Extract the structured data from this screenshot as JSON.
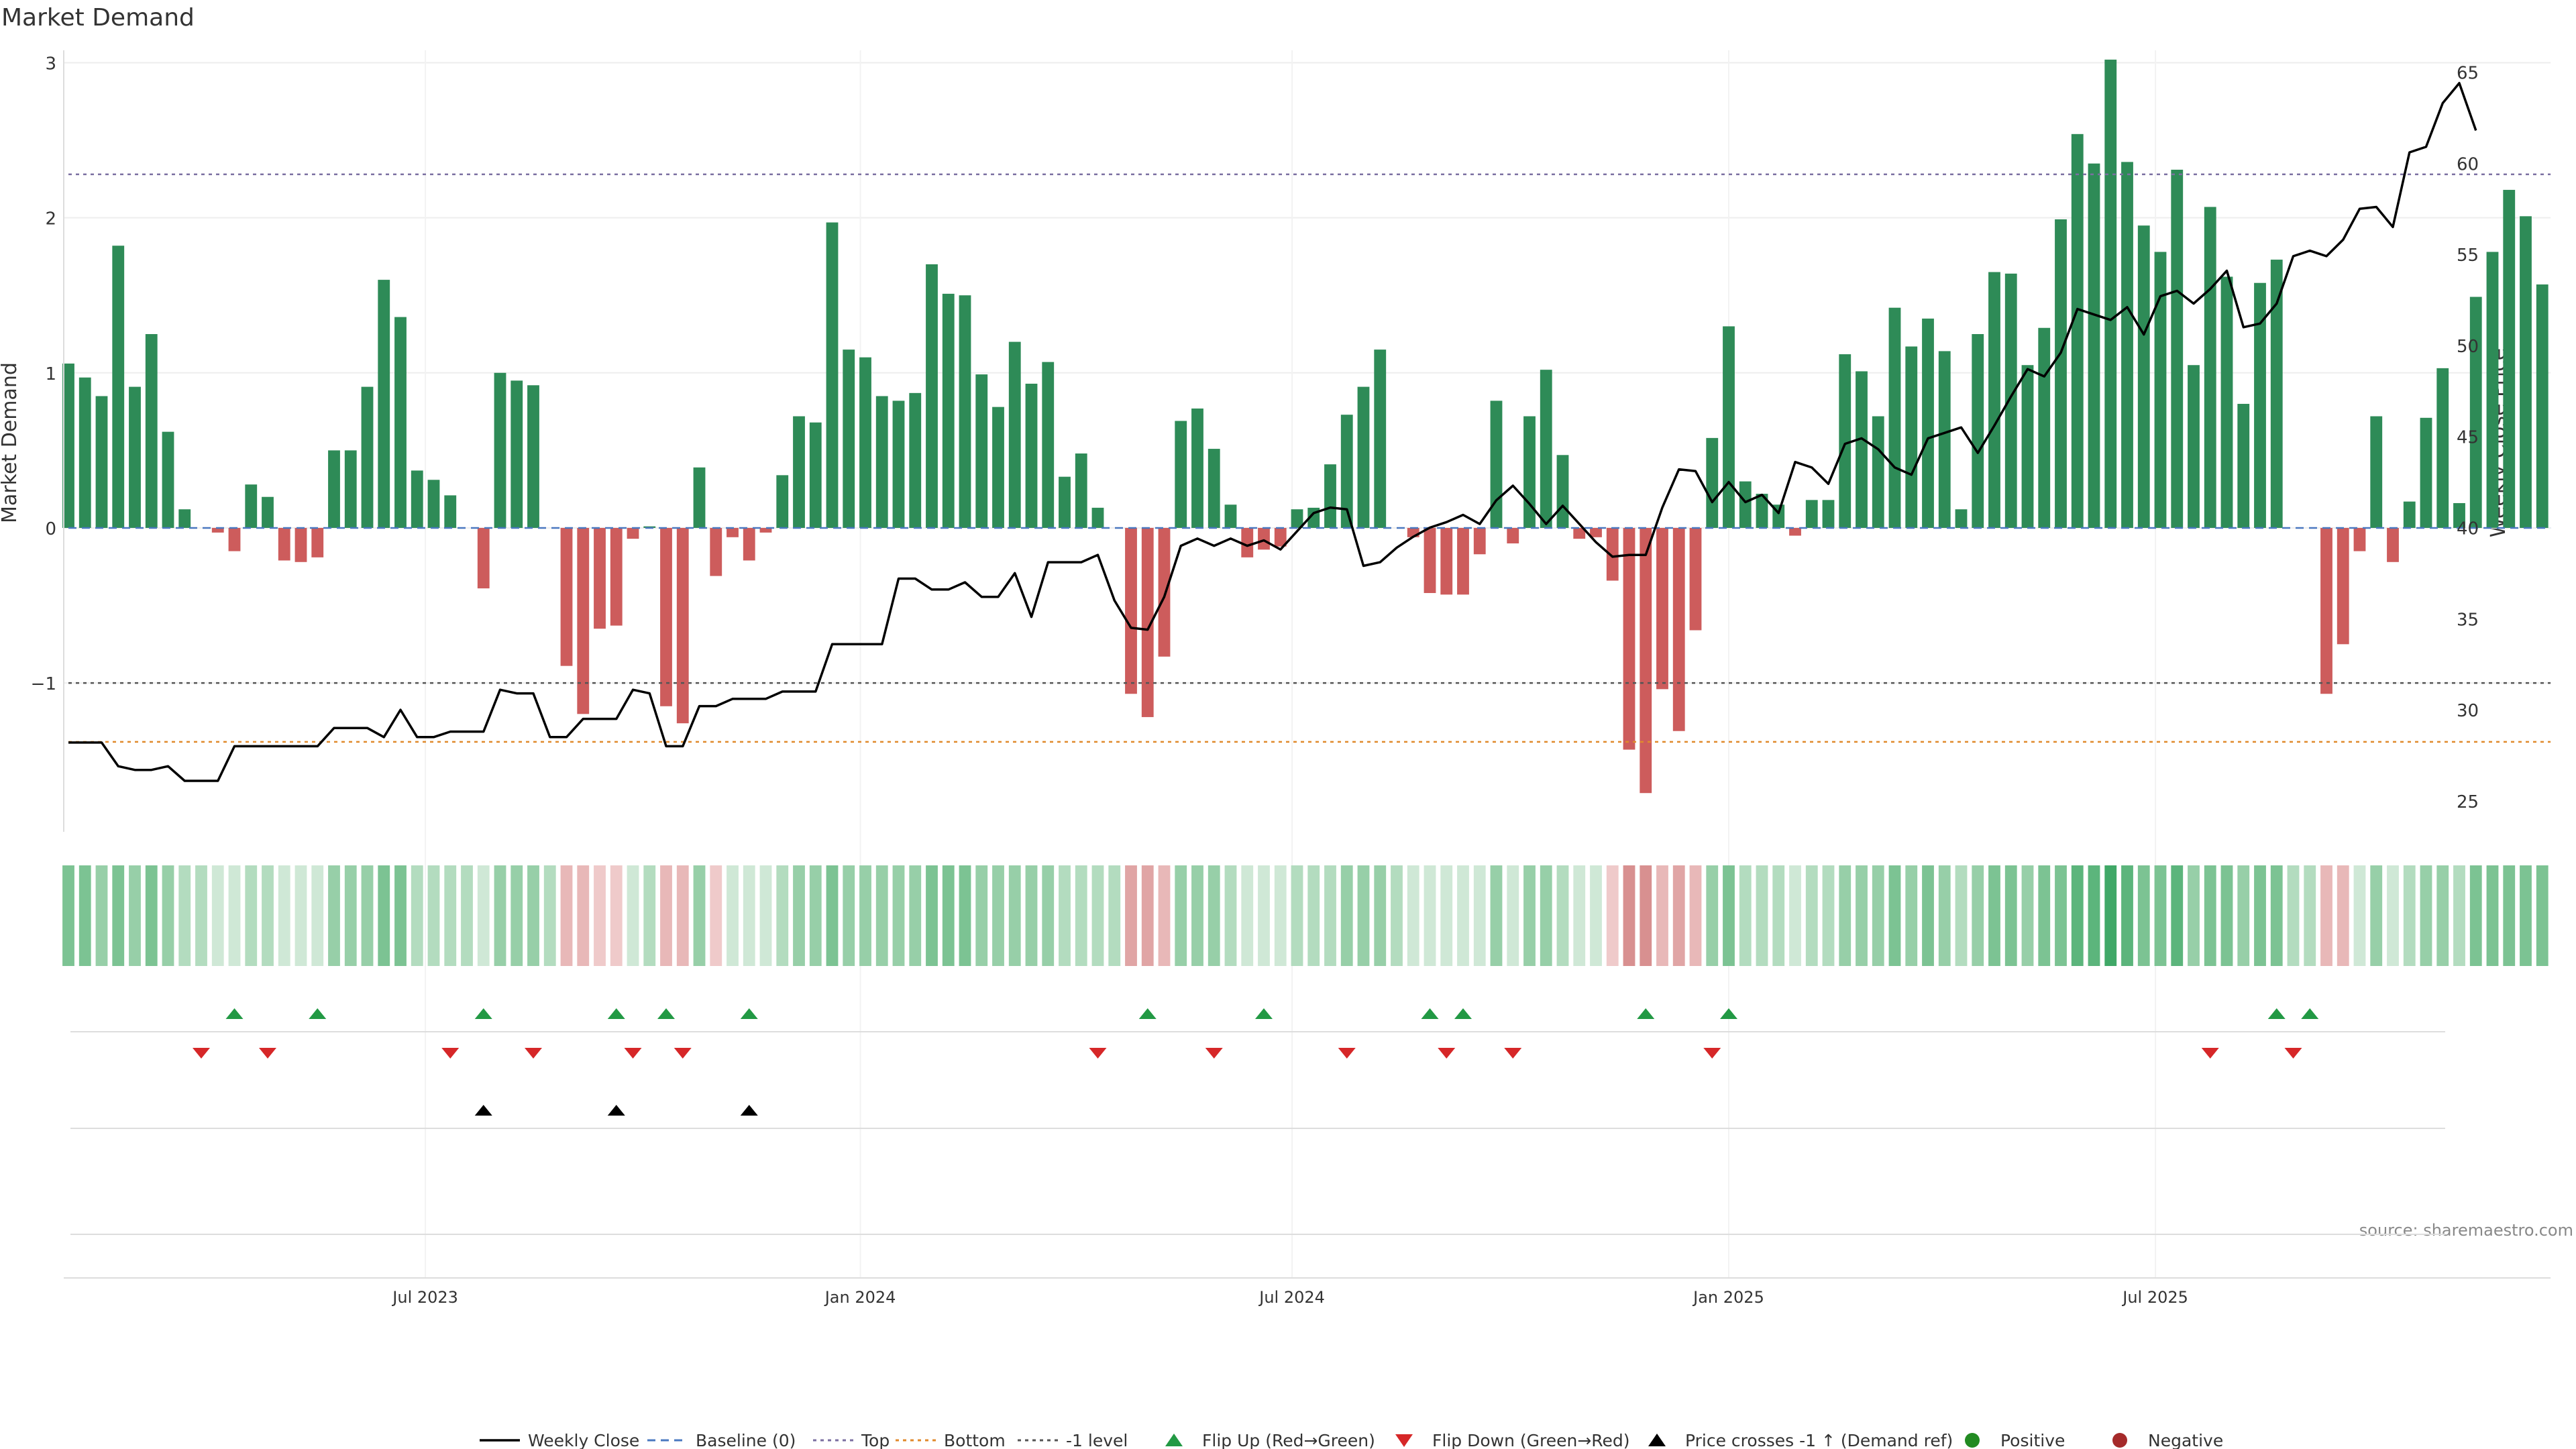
{
  "colors": {
    "positive_bar": "#2e8b57",
    "negative_bar": "#cd5c5c",
    "price_line": "#000000",
    "top_line": "#7b6fa1",
    "bottom_line": "#e08a2c",
    "minus1_line": "#555555",
    "baseline": "#4a78c0",
    "flip_up": "#229944",
    "flip_down": "#d62728",
    "cross": "#000000",
    "positive_dot": "#228b22",
    "negative_dot": "#a52a2a",
    "grid": "#eeeeee"
  },
  "chart_data": {
    "type": "bar",
    "title": "Market Demand",
    "ylabel": "Market Demand",
    "y2label": "Weekly Close Price",
    "source": "source: sharemaestro.com",
    "ylim": [
      -1.96,
      3.08
    ],
    "y2lim": [
      23.3,
      66.2
    ],
    "yticks": [
      {
        "v": -1,
        "label": "−1"
      },
      {
        "v": 0,
        "label": "0"
      },
      {
        "v": 1,
        "label": "1"
      },
      {
        "v": 2,
        "label": "2"
      },
      {
        "v": 3,
        "label": "3"
      }
    ],
    "y2ticks": [
      25,
      30,
      35,
      40,
      45,
      50,
      55,
      60,
      65
    ],
    "xticks": [
      {
        "label": "Jul 2023",
        "index": 21.5
      },
      {
        "label": "Jan 2024",
        "index": 47.7
      },
      {
        "label": "Jul 2024",
        "index": 73.7
      },
      {
        "label": "Jan 2025",
        "index": 100
      },
      {
        "label": "Jul 2025",
        "index": 125.7
      }
    ],
    "levels": {
      "top": 2.28,
      "bottom": -1.38,
      "minus1": -1.0,
      "baseline": 0
    },
    "demand": [
      1.06,
      0.97,
      0.85,
      1.82,
      0.91,
      1.25,
      0.62,
      0.12,
      0,
      -0.03,
      -0.15,
      0.28,
      0.2,
      -0.21,
      -0.22,
      -0.19,
      0.5,
      0.5,
      0.91,
      1.6,
      1.36,
      0.37,
      0.31,
      0.21,
      0,
      -0.39,
      1.0,
      0.95,
      0.92,
      0,
      -0.89,
      -1.2,
      -0.65,
      -0.63,
      -0.07,
      0.01,
      -1.15,
      -1.26,
      0.39,
      -0.31,
      -0.06,
      -0.21,
      -0.03,
      0.34,
      0.72,
      0.68,
      1.97,
      1.15,
      1.1,
      0.85,
      0.82,
      0.87,
      1.7,
      1.51,
      1.5,
      0.99,
      0.78,
      1.2,
      0.93,
      1.07,
      0.33,
      0.48,
      0.13,
      0,
      -1.07,
      -1.22,
      -0.83,
      0.69,
      0.77,
      0.51,
      0.15,
      -0.19,
      -0.14,
      -0.12,
      0.12,
      0.13,
      0.41,
      0.73,
      0.91,
      1.15,
      0,
      -0.06,
      -0.42,
      -0.43,
      -0.43,
      -0.17,
      0.82,
      -0.1,
      0.72,
      1.02,
      0.47,
      -0.07,
      -0.06,
      -0.34,
      -1.43,
      -1.71,
      -1.04,
      -1.31,
      -0.66,
      0.58,
      1.3,
      0.3,
      0.22,
      0.15,
      -0.05,
      0.18,
      0.18,
      1.12,
      1.01,
      0.72,
      1.42,
      1.17,
      1.35,
      1.14,
      0.12,
      1.25,
      1.65,
      1.64,
      1.05,
      1.29,
      1.99,
      2.54,
      2.35,
      3.02,
      2.36,
      1.95,
      1.78,
      2.31,
      1.05,
      2.07,
      1.62,
      0.8,
      1.58,
      1.73,
      0,
      0,
      -1.07,
      -0.75,
      -0.15,
      0.72,
      -0.22,
      0.17,
      0.71,
      1.03,
      0.16,
      1.49,
      1.78,
      2.18,
      2.01,
      1.57
    ],
    "price": [
      28.2,
      28.2,
      28.2,
      26.9,
      26.7,
      26.7,
      26.9,
      26.1,
      26.1,
      26.1,
      28.0,
      28.0,
      28.0,
      28.0,
      28.0,
      28.0,
      29.0,
      29.0,
      29.0,
      28.5,
      30.0,
      28.5,
      28.5,
      28.8,
      28.8,
      28.8,
      31.1,
      30.9,
      30.9,
      28.5,
      28.5,
      29.5,
      29.5,
      29.5,
      31.1,
      30.9,
      28.0,
      28.0,
      30.2,
      30.2,
      30.6,
      30.6,
      30.6,
      31.0,
      31.0,
      31.0,
      33.6,
      33.6,
      33.6,
      33.6,
      37.2,
      37.2,
      36.6,
      36.6,
      37.0,
      36.2,
      36.2,
      37.5,
      35.1,
      38.1,
      38.1,
      38.1,
      38.5,
      36.0,
      34.5,
      34.4,
      36.2,
      39.0,
      39.4,
      39.0,
      39.4,
      39.0,
      39.3,
      38.8,
      39.8,
      40.8,
      41.1,
      41.0,
      37.9,
      38.1,
      38.9,
      39.5,
      40.0,
      40.3,
      40.7,
      40.2,
      41.5,
      42.3,
      41.3,
      40.2,
      41.2,
      40.2,
      39.2,
      38.4,
      38.5,
      38.5,
      41.1,
      43.2,
      43.1,
      41.4,
      42.5,
      41.4,
      41.8,
      40.8,
      43.6,
      43.3,
      42.4,
      44.6,
      44.9,
      44.3,
      43.3,
      42.9,
      44.9,
      45.2,
      45.5,
      44.1,
      45.6,
      47.2,
      48.7,
      48.3,
      49.6,
      52.0,
      51.7,
      51.4,
      52.1,
      50.6,
      52.7,
      53.0,
      52.3,
      53.1,
      54.1,
      51.0,
      51.2,
      52.3,
      54.9,
      55.2,
      54.9,
      55.8,
      57.5,
      57.6,
      56.5,
      60.6,
      60.9,
      63.3,
      64.4,
      61.8
    ],
    "strength_levels": [
      3,
      3,
      2,
      3,
      2,
      3,
      2,
      1,
      1,
      0,
      0,
      1,
      1,
      0,
      0,
      0,
      2,
      2,
      2,
      3,
      3,
      1,
      1,
      1,
      1,
      0,
      2,
      2,
      2,
      1,
      -2,
      -2,
      -1,
      -1,
      0,
      1,
      -2,
      -2,
      2,
      -1,
      0,
      0,
      0,
      1,
      2,
      2,
      3,
      2,
      2,
      2,
      2,
      2,
      3,
      3,
      3,
      2,
      2,
      2,
      2,
      2,
      1,
      1,
      1,
      1,
      -3,
      -3,
      -2,
      2,
      2,
      2,
      1,
      0,
      0,
      0,
      1,
      1,
      1,
      2,
      2,
      2,
      1,
      0,
      0,
      0,
      0,
      0,
      2,
      0,
      2,
      2,
      1,
      0,
      0,
      -1,
      -4,
      -4,
      -2,
      -3,
      -2,
      2,
      3,
      1,
      1,
      1,
      0,
      1,
      1,
      2,
      2,
      2,
      3,
      2,
      3,
      2,
      1,
      2,
      3,
      3,
      2,
      3,
      3,
      4,
      4,
      5,
      4,
      3,
      3,
      4,
      2,
      3,
      3,
      2,
      3,
      3,
      1,
      1,
      -2,
      -2,
      0,
      2,
      0,
      1,
      2,
      2,
      1,
      3,
      3,
      3,
      3,
      3
    ],
    "flip_up_idx": [
      10,
      15,
      25,
      33,
      36,
      41,
      65,
      72,
      82,
      84,
      95,
      100,
      133,
      135
    ],
    "flip_down_idx": [
      8,
      12,
      23,
      28,
      34,
      37,
      62,
      69,
      77,
      83,
      87,
      99,
      129,
      134
    ],
    "cross_idx": [
      25,
      33,
      41
    ],
    "legend": [
      "Weekly Close",
      "Baseline (0)",
      "Top",
      "Bottom",
      "-1 level",
      "Flip Up (Red→Green)",
      "Flip Down (Green→Red)",
      "Price crosses -1 ↑ (Demand ref)",
      "Positive",
      "Negative"
    ]
  }
}
